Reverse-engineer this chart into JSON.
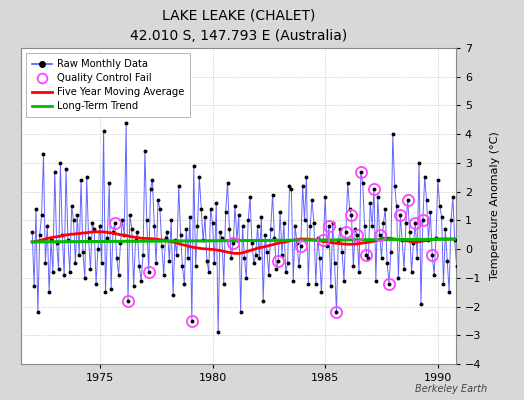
{
  "title": "LAKE LEAKE (CHALET)",
  "subtitle": "42.010 S, 147.793 E (Australia)",
  "ylabel": "Temperature Anomaly (°C)",
  "watermark": "Berkeley Earth",
  "ylim": [
    -4,
    7
  ],
  "yticks": [
    -4,
    -3,
    -2,
    -1,
    0,
    1,
    2,
    3,
    4,
    5,
    6,
    7
  ],
  "xlim_start": 1971.5,
  "xlim_end": 1990.8,
  "xticks": [
    1975,
    1980,
    1985,
    1990
  ],
  "bg_color": "#d8d8d8",
  "plot_bg_color": "#ffffff",
  "raw_color": "#5555ff",
  "marker_color": "#000000",
  "qc_color": "#ff44ff",
  "moving_avg_color": "#ff0000",
  "trend_color": "#00bb00",
  "raw_data": [
    0.6,
    -1.3,
    1.4,
    -2.2,
    0.5,
    1.2,
    3.3,
    -0.5,
    0.8,
    -1.5,
    0.3,
    -0.8,
    2.7,
    0.2,
    -0.7,
    3.0,
    0.5,
    -0.9,
    2.8,
    0.3,
    -0.8,
    1.5,
    1.0,
    -0.5,
    1.2,
    -0.2,
    2.4,
    -0.1,
    -1.0,
    2.5,
    0.4,
    -0.7,
    0.9,
    0.7,
    -1.2,
    0.0,
    0.8,
    -0.5,
    4.1,
    -1.5,
    0.4,
    2.3,
    -1.4,
    0.6,
    0.9,
    -0.3,
    -0.9,
    0.2,
    1.0,
    0.5,
    4.4,
    -1.8,
    1.2,
    0.7,
    -1.3,
    0.3,
    0.6,
    -0.6,
    -1.1,
    -0.2,
    3.4,
    1.0,
    -0.8,
    2.1,
    2.4,
    0.8,
    -0.5,
    1.7,
    1.4,
    0.1,
    -0.9,
    0.4,
    0.6,
    -0.4,
    1.0,
    -1.6,
    0.3,
    -0.2,
    2.2,
    0.5,
    -0.6,
    -1.2,
    0.7,
    -0.3,
    1.1,
    -2.5,
    2.9,
    -0.6,
    0.8,
    2.5,
    1.4,
    0.3,
    1.1,
    -0.4,
    -0.8,
    1.4,
    0.9,
    -0.5,
    1.6,
    -2.9,
    0.6,
    0.4,
    -1.2,
    1.3,
    2.3,
    0.7,
    -0.3,
    0.2,
    1.5,
    0.3,
    1.2,
    -2.2,
    0.8,
    -0.3,
    -1.0,
    1.0,
    1.8,
    0.2,
    -0.5,
    -0.2,
    0.8,
    -0.3,
    1.1,
    -1.8,
    0.5,
    -0.1,
    -0.9,
    0.7,
    1.9,
    0.4,
    -0.7,
    -0.4,
    1.3,
    -0.2,
    0.9,
    -0.8,
    -0.5,
    2.2,
    2.1,
    -1.1,
    0.8,
    0.2,
    -0.6,
    0.1,
    2.2,
    1.0,
    2.5,
    -1.2,
    0.8,
    1.7,
    0.9,
    -1.2,
    0.4,
    -0.3,
    -1.5,
    0.3,
    1.8,
    0.1,
    0.8,
    -1.3,
    0.9,
    -0.5,
    -2.2,
    0.3,
    0.7,
    -0.1,
    -1.1,
    0.6,
    2.3,
    1.4,
    1.2,
    -0.6,
    0.7,
    0.5,
    -0.8,
    2.7,
    2.3,
    0.8,
    -0.2,
    -0.3,
    1.6,
    0.8,
    2.1,
    -1.1,
    1.8,
    0.5,
    -0.3,
    0.9,
    1.4,
    -0.5,
    -1.2,
    -0.1,
    4.0,
    2.2,
    1.5,
    -1.0,
    1.2,
    0.3,
    -0.7,
    0.9,
    1.7,
    0.6,
    -0.8,
    0.2,
    0.9,
    -0.3,
    3.0,
    -1.9,
    1.0,
    2.5,
    1.7,
    0.3,
    1.3,
    -0.2,
    -0.9,
    0.4,
    2.4,
    1.5,
    1.1,
    -1.2,
    0.7,
    -0.4,
    -1.5,
    1.0,
    1.8,
    0.3,
    -0.6,
    0.5,
    -1.9
  ],
  "qc_fail_indices": [
    44,
    51,
    62,
    85,
    107,
    131,
    143,
    155,
    158,
    162,
    167,
    170,
    173,
    175,
    178,
    182,
    185,
    190,
    196,
    200,
    204,
    208,
    213
  ],
  "start_year": 1972,
  "start_month": 1,
  "moving_avg_vals": [
    0.25,
    0.25,
    0.27,
    0.28,
    0.3,
    0.32,
    0.33,
    0.35,
    0.37,
    0.38,
    0.4,
    0.41,
    0.42,
    0.43,
    0.44,
    0.45,
    0.47,
    0.48,
    0.49,
    0.5,
    0.51,
    0.52,
    0.52,
    0.53,
    0.54,
    0.54,
    0.55,
    0.56,
    0.56,
    0.57,
    0.58,
    0.59,
    0.59,
    0.6,
    0.6,
    0.6,
    0.6,
    0.6,
    0.6,
    0.59,
    0.58,
    0.57,
    0.56,
    0.55,
    0.54,
    0.53,
    0.51,
    0.5,
    0.49,
    0.48,
    0.47,
    0.46,
    0.44,
    0.43,
    0.42,
    0.41,
    0.4,
    0.39,
    0.38,
    0.37,
    0.37,
    0.37,
    0.36,
    0.36,
    0.36,
    0.35,
    0.34,
    0.34,
    0.33,
    0.32,
    0.31,
    0.3,
    0.29,
    0.27,
    0.26,
    0.25,
    0.23,
    0.21,
    0.19,
    0.17,
    0.15,
    0.14,
    0.12,
    0.1,
    0.09,
    0.07,
    0.06,
    0.05,
    0.04,
    0.03,
    0.02,
    0.01,
    0.01,
    0.0,
    0.0,
    -0.01,
    -0.01,
    -0.02,
    -0.03,
    -0.04,
    -0.05,
    -0.06,
    -0.08,
    -0.09,
    -0.11,
    -0.12,
    -0.13,
    -0.14,
    -0.15,
    -0.15,
    -0.15,
    -0.14,
    -0.13,
    -0.11,
    -0.09,
    -0.07,
    -0.05,
    -0.03,
    -0.01,
    0.01,
    0.03,
    0.05,
    0.06,
    0.07,
    0.09,
    0.1,
    0.12,
    0.14,
    0.15,
    0.17,
    0.19,
    0.2,
    0.22,
    0.23,
    0.24,
    0.25,
    0.27,
    0.28,
    0.3,
    0.31,
    0.32,
    0.33,
    0.34,
    0.35,
    0.35,
    0.35,
    0.35,
    0.34,
    0.34,
    0.33,
    0.32,
    0.31,
    0.3,
    0.29,
    0.28,
    0.27,
    0.26,
    0.25,
    0.24,
    0.23,
    0.22,
    0.21,
    0.2,
    0.2,
    0.19,
    0.18,
    0.18,
    0.17,
    0.17,
    0.17,
    0.17,
    0.17,
    0.18,
    0.18,
    0.19,
    0.2,
    0.21,
    0.22,
    0.23,
    0.24,
    0.25,
    0.26,
    0.28,
    0.3,
    0.32,
    0.34,
    0.36,
    0.37,
    0.38,
    0.38,
    0.38,
    0.37,
    0.36,
    0.35,
    0.34,
    0.33,
    0.32,
    0.31,
    0.3,
    0.29,
    0.28,
    0.27,
    0.26,
    0.25,
    0.25,
    0.25,
    0.26,
    0.27,
    0.28,
    0.29,
    0.3,
    0.31,
    0.32,
    0.33,
    0.34,
    0.35,
    0.35,
    0.35,
    0.35,
    0.35,
    0.35,
    0.35,
    0.35,
    0.35,
    0.35,
    0.35,
    0.35,
    0.35,
    0.35
  ]
}
